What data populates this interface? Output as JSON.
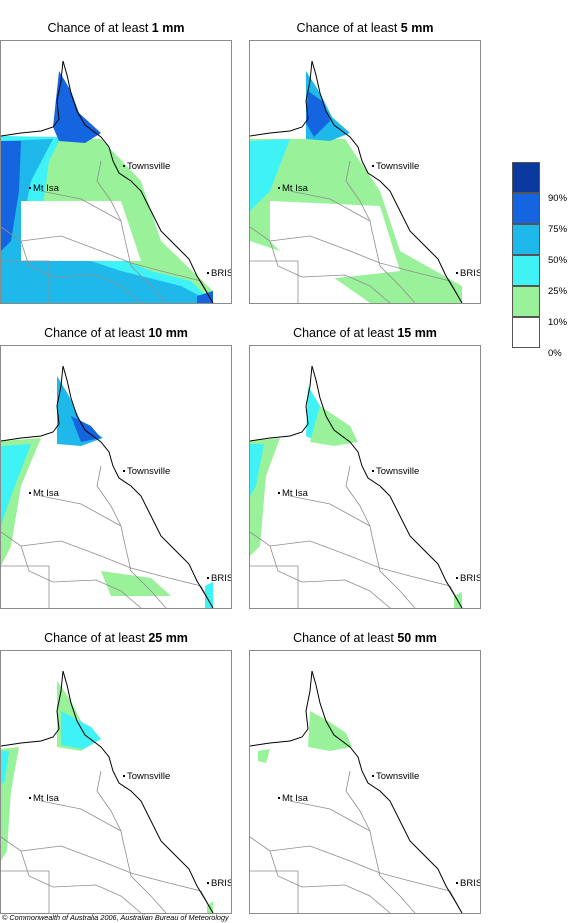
{
  "panels": [
    {
      "title_prefix": "Chance of at least",
      "amount": "1 mm"
    },
    {
      "title_prefix": "Chance of at least",
      "amount": "5 mm"
    },
    {
      "title_prefix": "Chance of at least",
      "amount": "10 mm"
    },
    {
      "title_prefix": "Chance of at least",
      "amount": "15 mm"
    },
    {
      "title_prefix": "Chance of at least",
      "amount": "25 mm"
    },
    {
      "title_prefix": "Chance of at least",
      "amount": "50 mm"
    }
  ],
  "places": {
    "townsville": "Townsville",
    "mt_isa": "Mt Isa",
    "brisbane": "BRIS"
  },
  "legend": {
    "labels": [
      "90%",
      "75%",
      "50%",
      "25%",
      "10%",
      "0%"
    ],
    "colors": [
      "#0a3a9e",
      "#1565e0",
      "#1fb8ea",
      "#3ff2f5",
      "#99f29a",
      "#ffffff"
    ]
  },
  "copyright": "© Commonwealth of Australia 2006, Australian Bureau of Meteorology"
}
